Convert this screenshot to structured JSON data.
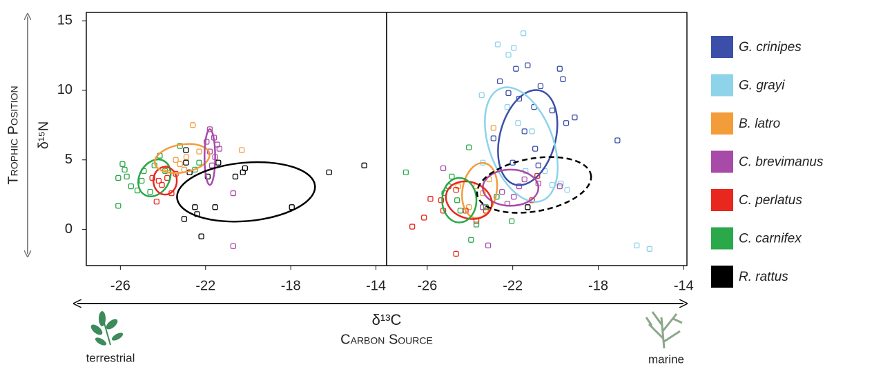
{
  "y_axis_label": "Trophic Position",
  "y_axis_symbol": "δ¹⁵N",
  "x_axis_symbol": "δ¹³C",
  "x_axis_label": "Carbon Source",
  "x_left_label": "terrestrial",
  "x_right_label": "marine",
  "chart_data": [
    {
      "type": "scatter",
      "xlim": [
        -27.6,
        -13.5
      ],
      "ylim": [
        -2.6,
        15.6
      ],
      "xticks": [
        -26,
        -22,
        -18,
        -14
      ],
      "yticks": [
        0,
        5,
        10,
        15
      ],
      "series": [
        {
          "name": "C. carnifex",
          "color": "#2aa84a",
          "x": [
            -25.9,
            -25.8,
            -26.1,
            -25.7,
            -25.5,
            -25.2,
            -26.1,
            -25.0,
            -24.9,
            -24.15,
            -24.4,
            -23.9,
            -23.2,
            -22.5,
            -22.3,
            -24.6
          ],
          "y": [
            4.7,
            4.3,
            3.7,
            3.8,
            3.1,
            2.8,
            1.7,
            3.5,
            4.2,
            5.3,
            4.6,
            4.2,
            6.0,
            4.3,
            4.8,
            2.7
          ],
          "ellipse": {
            "cx": -24.4,
            "cy": 3.7,
            "rx": 0.7,
            "ry": 1.4,
            "angle": 30
          }
        },
        {
          "name": "C. perlatus",
          "color": "#e8281e",
          "x": [
            -24.3,
            -24.05,
            -23.8,
            -23.6,
            -24.2,
            -23.4,
            -24.5
          ],
          "y": [
            2.0,
            3.2,
            3.7,
            2.6,
            3.5,
            4.0,
            3.7
          ],
          "ellipse": {
            "cx": -23.9,
            "cy": 3.5,
            "rx": 0.55,
            "ry": 1.0,
            "angle": 0
          }
        },
        {
          "name": "B. latro",
          "color": "#f39c3a",
          "x": [
            -22.6,
            -23.4,
            -23.2,
            -22.9,
            -22.3,
            -20.3,
            -23.0,
            -23.8
          ],
          "y": [
            7.5,
            5.0,
            4.7,
            5.2,
            5.6,
            5.7,
            4.3,
            4.4
          ],
          "ellipse": {
            "cx": -23.1,
            "cy": 5.1,
            "rx": 1.3,
            "ry": 1.0,
            "angle": -10
          }
        },
        {
          "name": "C. brevimanus",
          "color": "#a84aa8",
          "x": [
            -21.8,
            -21.6,
            -21.95,
            -21.45,
            -21.8,
            -21.35,
            -21.7,
            -20.7,
            -20.7,
            -21.55
          ],
          "y": [
            7.2,
            6.6,
            6.3,
            6.1,
            5.6,
            5.8,
            4.6,
            2.6,
            -1.2,
            5.2
          ],
          "ellipse": {
            "cx": -21.8,
            "cy": 5.2,
            "rx": 0.25,
            "ry": 2.0,
            "angle": 0
          }
        },
        {
          "name": "R. rattus",
          "color": "#000000",
          "x": [
            -22.92,
            -22.92,
            -22.75,
            -22.5,
            -22.4,
            -22.2,
            -23.0,
            -21.55,
            -20.6,
            -20.25,
            -20.15,
            -17.95,
            -16.2,
            -14.55,
            -21.4,
            -21.9
          ],
          "y": [
            5.7,
            4.8,
            4.1,
            1.6,
            1.1,
            -0.5,
            0.75,
            1.6,
            3.8,
            4.1,
            4.4,
            1.6,
            4.1,
            4.6,
            4.8,
            3.8
          ],
          "ellipse": {
            "cx": -20.1,
            "cy": 2.7,
            "rx": 3.25,
            "ry": 2.1,
            "angle": -5
          }
        }
      ]
    },
    {
      "type": "scatter",
      "xlim": [
        -27.9,
        -13.85
      ],
      "ylim": [
        -2.6,
        15.6
      ],
      "xticks": [
        -26,
        -22,
        -18,
        -14
      ],
      "series": [
        {
          "name": "G. crinipes",
          "color": "#3b4fa8",
          "x": [
            -21.85,
            -21.3,
            -22.6,
            -20.7,
            -19.8,
            -19.65,
            -22.2,
            -21.7,
            -21.0,
            -20.15,
            -19.1,
            -19.5,
            -21.45,
            -22.9,
            -20.95,
            -17.1,
            -20.8,
            -22.0
          ],
          "y": [
            11.55,
            11.8,
            10.65,
            10.3,
            11.55,
            10.8,
            9.8,
            9.4,
            8.8,
            8.55,
            8.05,
            7.65,
            7.05,
            6.55,
            5.8,
            6.4,
            4.6,
            4.8
          ],
          "ellipse": {
            "cx": -21.3,
            "cy": 6.6,
            "rx": 1.3,
            "ry": 3.5,
            "angle": 15
          }
        },
        {
          "name": "G. grayi",
          "color": "#8dd3ea",
          "x": [
            -21.5,
            -22.7,
            -21.95,
            -22.2,
            -23.45,
            -22.25,
            -21.75,
            -21.1,
            -23.4,
            -21.4,
            -20.15,
            -19.75,
            -19.45,
            -16.2,
            -15.6,
            -22.75,
            -20.5
          ],
          "y": [
            14.1,
            13.3,
            13.05,
            12.55,
            9.65,
            8.8,
            7.65,
            7.05,
            4.8,
            4.2,
            3.2,
            3.3,
            2.85,
            -1.15,
            -1.4,
            2.35,
            4.2
          ],
          "ellipse": {
            "cx": -21.6,
            "cy": 6.1,
            "rx": 1.5,
            "ry": 4.3,
            "angle": -20
          }
        },
        {
          "name": "B. latro",
          "color": "#f39c3a",
          "x": [
            -22.9,
            -23.7,
            -23.4,
            -24.05,
            -23.1,
            -24.55
          ],
          "y": [
            7.3,
            3.1,
            2.6,
            1.6,
            3.6,
            3.1
          ],
          "ellipse": {
            "cx": -23.55,
            "cy": 2.8,
            "rx": 0.8,
            "ry": 2.0,
            "angle": 10
          }
        },
        {
          "name": "C. brevimanus",
          "color": "#a84aa8",
          "x": [
            -25.25,
            -22.5,
            -21.7,
            -21.45,
            -20.8,
            -19.8,
            -22.25,
            -23.15,
            -23.4,
            -21.95
          ],
          "y": [
            4.4,
            2.7,
            3.1,
            3.6,
            3.3,
            3.1,
            1.85,
            -1.15,
            1.6,
            2.35
          ],
          "ellipse": {
            "cx": -22.1,
            "cy": 3.0,
            "rx": 1.3,
            "ry": 1.3,
            "angle": 0
          }
        },
        {
          "name": "C. perlatus",
          "color": "#e8281e",
          "x": [
            -26.7,
            -26.15,
            -25.85,
            -25.25,
            -24.65,
            -24.65,
            -23.7,
            -23.25,
            -25.35,
            -24.2,
            -21.1,
            -20.85
          ],
          "y": [
            0.2,
            0.85,
            2.2,
            1.35,
            2.85,
            -1.75,
            0.6,
            1.35,
            2.1,
            1.35,
            2.1,
            3.85
          ],
          "ellipse": {
            "cx": -24.05,
            "cy": 2.1,
            "rx": 1.1,
            "ry": 1.3,
            "angle": 20
          }
        },
        {
          "name": "C. carnifex",
          "color": "#2aa84a",
          "x": [
            -27.0,
            -24.05,
            -24.85,
            -25.0,
            -24.6,
            -23.7,
            -23.95,
            -23.25,
            -22.75,
            -22.05,
            -24.45,
            -25.2
          ],
          "y": [
            4.1,
            5.9,
            3.8,
            3.1,
            2.1,
            0.35,
            -0.75,
            1.6,
            2.35,
            0.6,
            1.35,
            2.6
          ],
          "ellipse": {
            "cx": -24.5,
            "cy": 2.1,
            "rx": 0.8,
            "ry": 1.6,
            "angle": 0
          }
        },
        {
          "name": "R. rattus",
          "color": "#000000",
          "x": [
            -21.3
          ],
          "y": [
            1.6
          ],
          "ellipse": {
            "cx": -21.0,
            "cy": 3.2,
            "rx": 2.7,
            "ry": 1.9,
            "angle": -10,
            "dashed": true
          }
        }
      ]
    }
  ]
}
